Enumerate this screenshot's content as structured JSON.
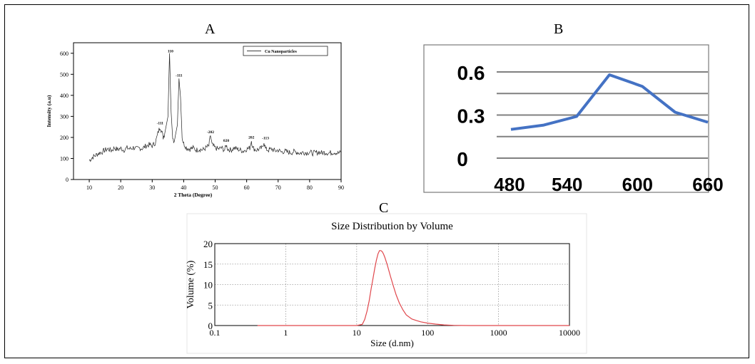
{
  "panel_labels": [
    "A",
    "B",
    "C"
  ],
  "chart_data": [
    {
      "panel": "A",
      "type": "line",
      "xlabel": "2 Theta (Degree)",
      "ylabel": "Intensity (a.u)",
      "xlim": [
        5,
        90
      ],
      "ylim": [
        0,
        650
      ],
      "xticks": [
        10,
        20,
        30,
        40,
        50,
        60,
        70,
        80,
        90
      ],
      "yticks": [
        0,
        100,
        200,
        300,
        400,
        500,
        600
      ],
      "legend": "Cu  Nanoparticles",
      "legend_position": "top-right",
      "series": [
        {
          "x": [
            10,
            11,
            12,
            13,
            14,
            15,
            16,
            17,
            18,
            19,
            20,
            21,
            22,
            23,
            24,
            25,
            26,
            27,
            28,
            29,
            30,
            31,
            32,
            32.5,
            33,
            33.5,
            34,
            35,
            35.5,
            36,
            36.5,
            37,
            38,
            38.5,
            39,
            39.5,
            40,
            41,
            42,
            43,
            44,
            45,
            46,
            47,
            48,
            48.5,
            49,
            50,
            51,
            52,
            53,
            53.5,
            54,
            55,
            56,
            57,
            58,
            59,
            60,
            61,
            61.5,
            62,
            63,
            64,
            65,
            65.5,
            66,
            67,
            68,
            69,
            70,
            71,
            72,
            73,
            74,
            75,
            76,
            77,
            78,
            79,
            80,
            81,
            82,
            83,
            84,
            85,
            86,
            87,
            88,
            89,
            90
          ],
          "y": [
            90,
            105,
            115,
            125,
            130,
            140,
            145,
            138,
            150,
            142,
            148,
            140,
            150,
            145,
            152,
            145,
            150,
            148,
            160,
            165,
            160,
            175,
            230,
            250,
            230,
            200,
            220,
            300,
            600,
            320,
            200,
            180,
            260,
            480,
            390,
            200,
            170,
            150,
            145,
            150,
            140,
            145,
            140,
            150,
            160,
            210,
            165,
            150,
            145,
            150,
            140,
            165,
            145,
            140,
            150,
            145,
            140,
            135,
            145,
            150,
            185,
            150,
            140,
            145,
            150,
            180,
            145,
            140,
            145,
            135,
            140,
            130,
            135,
            130,
            128,
            132,
            130,
            125,
            130,
            127,
            130,
            125,
            128,
            130,
            126,
            130,
            125,
            128,
            130,
            125,
            128
          ]
        }
      ],
      "annotations": [
        {
          "text": "-111",
          "x": 32.5,
          "y": 262
        },
        {
          "text": "110",
          "x": 35.8,
          "y": 605
        },
        {
          "text": "-111",
          "x": 38.5,
          "y": 490
        },
        {
          "text": "-202",
          "x": 48.5,
          "y": 220
        },
        {
          "text": "020",
          "x": 53.5,
          "y": 180
        },
        {
          "text": "202",
          "x": 61.5,
          "y": 195
        },
        {
          "text": "-113",
          "x": 66,
          "y": 192
        }
      ]
    },
    {
      "panel": "B",
      "type": "line",
      "xlim": [
        480,
        660
      ],
      "ylim": [
        0,
        0.6
      ],
      "xticks": [
        480,
        540,
        600,
        660
      ],
      "yticks_labeled": [
        0,
        0.3,
        0.6
      ],
      "grid": true,
      "color": "#4472C4",
      "x": [
        480,
        510,
        540,
        570,
        600,
        630,
        660
      ],
      "y": [
        0.2,
        0.23,
        0.29,
        0.58,
        0.5,
        0.32,
        0.25
      ]
    },
    {
      "panel": "C",
      "type": "line",
      "title": "Size Distribution by Volume",
      "xlabel": "Size (d.nm)",
      "ylabel": "Volume (%)",
      "xscale": "log",
      "xlim": [
        0.1,
        10000
      ],
      "ylim": [
        0,
        20
      ],
      "xticks": [
        "0.1",
        "1",
        "10",
        "100",
        "1000",
        "10000"
      ],
      "yticks": [
        0,
        5,
        10,
        15,
        20
      ],
      "grid": true,
      "color": "#E0474C",
      "x": [
        0.4,
        10,
        12,
        13,
        14,
        15,
        16,
        17,
        18,
        19,
        20,
        21,
        22,
        23,
        24,
        25,
        27,
        30,
        33,
        36,
        40,
        45,
        50,
        60,
        70,
        80,
        100,
        130,
        170,
        230,
        300,
        400,
        10000
      ],
      "y": [
        0,
        0,
        0.3,
        1.5,
        3.5,
        6,
        9,
        11.5,
        14,
        16,
        17.5,
        18.3,
        18.3,
        18,
        17.4,
        16.6,
        14.8,
        12,
        9.6,
        7.5,
        5.5,
        3.8,
        2.6,
        1.6,
        1.2,
        0.9,
        0.6,
        0.35,
        0.15,
        0.05,
        0.01,
        0,
        0
      ]
    }
  ]
}
